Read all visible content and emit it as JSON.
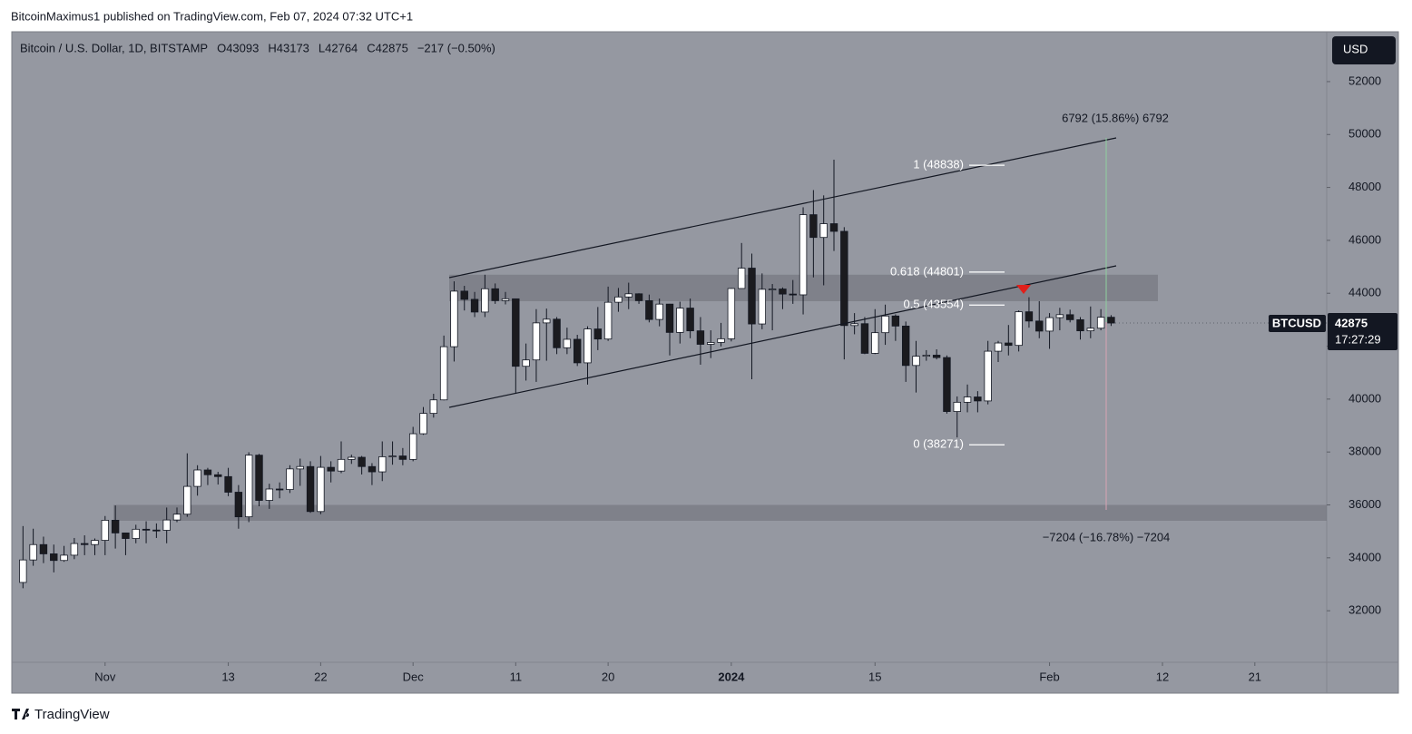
{
  "header": {
    "publisher": "BitcoinMaximus1 published on TradingView.com, Feb 07, 2024 07:32 UTC+1",
    "brand": "TradingView"
  },
  "chart_data": {
    "type": "candlestick",
    "title": "Bitcoin / U.S. Dollar, 1D, BITSTAMP",
    "ohlc_legend": [
      "O43093",
      "H43173",
      "L42764",
      "C42875",
      "−217 (−0.50%)"
    ],
    "currency": "USD",
    "x": [
      "2023-10-24",
      "2023-10-25",
      "2023-10-26",
      "2023-10-27",
      "2023-10-28",
      "2023-10-29",
      "2023-10-30",
      "2023-10-31",
      "2023-11-01",
      "2023-11-02",
      "2023-11-03",
      "2023-11-04",
      "2023-11-05",
      "2023-11-06",
      "2023-11-07",
      "2023-11-08",
      "2023-11-09",
      "2023-11-10",
      "2023-11-11",
      "2023-11-12",
      "2023-11-13",
      "2023-11-14",
      "2023-11-15",
      "2023-11-16",
      "2023-11-17",
      "2023-11-18",
      "2023-11-19",
      "2023-11-20",
      "2023-11-21",
      "2023-11-22",
      "2023-11-23",
      "2023-11-24",
      "2023-11-25",
      "2023-11-26",
      "2023-11-27",
      "2023-11-28",
      "2023-11-29",
      "2023-11-30",
      "2023-12-01",
      "2023-12-02",
      "2023-12-03",
      "2023-12-04",
      "2023-12-05",
      "2023-12-06",
      "2023-12-07",
      "2023-12-08",
      "2023-12-09",
      "2023-12-10",
      "2023-12-11",
      "2023-12-12",
      "2023-12-13",
      "2023-12-14",
      "2023-12-15",
      "2023-12-16",
      "2023-12-17",
      "2023-12-18",
      "2023-12-19",
      "2023-12-20",
      "2023-12-21",
      "2023-12-22",
      "2023-12-23",
      "2023-12-24",
      "2023-12-25",
      "2023-12-26",
      "2023-12-27",
      "2023-12-28",
      "2023-12-29",
      "2023-12-30",
      "2023-12-31",
      "2024-01-01",
      "2024-01-02",
      "2024-01-03",
      "2024-01-04",
      "2024-01-05",
      "2024-01-06",
      "2024-01-07",
      "2024-01-08",
      "2024-01-09",
      "2024-01-10",
      "2024-01-11",
      "2024-01-12",
      "2024-01-13",
      "2024-01-14",
      "2024-01-15",
      "2024-01-16",
      "2024-01-17",
      "2024-01-18",
      "2024-01-19",
      "2024-01-20",
      "2024-01-21",
      "2024-01-22",
      "2024-01-23",
      "2024-01-24",
      "2024-01-25",
      "2024-01-26",
      "2024-01-27",
      "2024-01-28",
      "2024-01-29",
      "2024-01-30",
      "2024-01-31",
      "2024-02-01",
      "2024-02-02",
      "2024-02-03",
      "2024-02-04",
      "2024-02-05",
      "2024-02-06",
      "2024-02-07"
    ],
    "open": [
      33070,
      33920,
      34500,
      34150,
      33900,
      34100,
      34540,
      34500,
      34660,
      35420,
      34940,
      34730,
      35080,
      35050,
      35040,
      35430,
      35650,
      36700,
      37320,
      37140,
      37070,
      36480,
      35550,
      37880,
      36170,
      36600,
      36580,
      37360,
      37450,
      35750,
      37420,
      37280,
      37720,
      37800,
      37450,
      37250,
      37820,
      37850,
      37720,
      38690,
      39460,
      39970,
      41980,
      44080,
      43770,
      43290,
      44170,
      43720,
      43790,
      41240,
      41480,
      42880,
      43020,
      41940,
      42260,
      41370,
      42650,
      42270,
      43660,
      43860,
      43980,
      43720,
      43010,
      43590,
      42520,
      43440,
      42580,
      42070,
      42140,
      42280,
      44180,
      44950,
      42840,
      44150,
      44160,
      43970,
      43940,
      46970,
      46110,
      46630,
      46340,
      42780,
      42850,
      41730,
      42510,
      43140,
      42760,
      41270,
      41620,
      41660,
      41570,
      39530,
      39880,
      40080,
      39930,
      41810,
      42120,
      42030,
      43300,
      42950,
      42570,
      43080,
      43190,
      43000,
      42580,
      42680,
      43093
    ],
    "high": [
      35200,
      35100,
      34800,
      34500,
      34450,
      34750,
      34850,
      34730,
      35580,
      35980,
      34950,
      35250,
      35380,
      35300,
      35900,
      35900,
      37950,
      37500,
      37400,
      37250,
      37400,
      36750,
      37990,
      37930,
      36800,
      36850,
      37500,
      37750,
      37650,
      37850,
      37650,
      38400,
      37900,
      37850,
      37580,
      38400,
      38400,
      38150,
      38950,
      39700,
      40200,
      42400,
      44450,
      44280,
      44050,
      44700,
      44370,
      44050,
      43800,
      42100,
      43400,
      43420,
      43100,
      42700,
      42430,
      42750,
      43480,
      44250,
      44200,
      44400,
      44000,
      43950,
      43800,
      43600,
      43680,
      43800,
      43100,
      42600,
      42880,
      44200,
      45900,
      45500,
      44750,
      44350,
      44220,
      44500,
      47250,
      47900,
      47700,
      49050,
      46500,
      43250,
      43100,
      43400,
      43570,
      43200,
      42930,
      42200,
      41850,
      41880,
      41650,
      40100,
      40550,
      40300,
      42200,
      42200,
      42800,
      43350,
      43850,
      43700,
      43250,
      43450,
      43380,
      43100,
      43500,
      43400,
      43173
    ],
    "low": [
      32850,
      33700,
      33800,
      33450,
      33850,
      33950,
      34100,
      34100,
      34100,
      34350,
      34100,
      34550,
      34550,
      34750,
      34550,
      35350,
      35550,
      36350,
      36750,
      36770,
      36330,
      35100,
      35350,
      35950,
      35850,
      36250,
      36450,
      36720,
      35700,
      35650,
      36850,
      37200,
      37550,
      37150,
      36750,
      36900,
      37520,
      37500,
      37650,
      38650,
      39300,
      39950,
      41420,
      43350,
      43100,
      43100,
      43600,
      43580,
      40200,
      40700,
      40650,
      41450,
      41700,
      41700,
      41250,
      40550,
      41850,
      42200,
      43300,
      43400,
      43600,
      42900,
      42750,
      41650,
      42100,
      42300,
      41300,
      41550,
      41990,
      42180,
      44180,
      40750,
      42640,
      42600,
      43400,
      43600,
      43200,
      44600,
      44300,
      45600,
      41500,
      42450,
      41700,
      41700,
      42050,
      42200,
      40650,
      40250,
      41450,
      41500,
      39450,
      38550,
      39500,
      39500,
      39800,
      41400,
      41650,
      41800,
      42700,
      42300,
      41900,
      42600,
      42900,
      42250,
      42300,
      42600,
      42764
    ],
    "close": [
      33920,
      34500,
      34150,
      33900,
      34100,
      34540,
      34500,
      34660,
      35420,
      34940,
      34730,
      35080,
      35050,
      35040,
      35430,
      35650,
      36700,
      37320,
      37140,
      37070,
      36480,
      35550,
      37880,
      36170,
      36600,
      36580,
      37360,
      37450,
      35750,
      37420,
      37280,
      37720,
      37800,
      37450,
      37250,
      37820,
      37850,
      37720,
      38690,
      39460,
      39970,
      41980,
      44080,
      43770,
      43290,
      44170,
      43720,
      43790,
      41240,
      41480,
      42880,
      43020,
      41940,
      42260,
      41370,
      42650,
      42270,
      43660,
      43860,
      43980,
      43720,
      43010,
      43590,
      42520,
      43440,
      42580,
      42070,
      42140,
      42280,
      44180,
      44950,
      42840,
      44150,
      44160,
      43970,
      43940,
      46970,
      46110,
      46630,
      46340,
      42780,
      42850,
      41730,
      42510,
      43140,
      42760,
      41270,
      41620,
      41660,
      41570,
      39530,
      39880,
      40080,
      39930,
      41810,
      42120,
      42030,
      43300,
      42950,
      42570,
      43080,
      43190,
      43000,
      42580,
      42680,
      43093,
      42875
    ],
    "up_color": "#ffffff",
    "down_color": "#1b1b1f",
    "wick_color": "#131722",
    "xlim": [
      "2023-10-23",
      "2024-02-28"
    ],
    "xticks": [
      {
        "value": "2023-11-01",
        "label": "Nov"
      },
      {
        "value": "2023-11-13",
        "label": "13"
      },
      {
        "value": "2023-11-22",
        "label": "22"
      },
      {
        "value": "2023-12-01",
        "label": "Dec"
      },
      {
        "value": "2023-12-11",
        "label": "11"
      },
      {
        "value": "2023-12-20",
        "label": "20"
      },
      {
        "value": "2024-01-01",
        "label": "2024"
      },
      {
        "value": "2024-01-15",
        "label": "15"
      },
      {
        "value": "2024-02-01",
        "label": "Feb"
      },
      {
        "value": "2024-02-12",
        "label": "12"
      },
      {
        "value": "2024-02-21",
        "label": "21"
      }
    ],
    "ylim": [
      30050,
      53850
    ],
    "yticks": [
      32000,
      34000,
      36000,
      38000,
      40000,
      42000,
      44000,
      46000,
      48000,
      50000,
      52000
    ],
    "resistance_zone": [
      43700,
      44700
    ],
    "support_zone": [
      35400,
      36000
    ],
    "fib_levels": [
      {
        "label": "1 (48838)",
        "value": 48838
      },
      {
        "label": "0.618 (44801)",
        "value": 44801
      },
      {
        "label": "0.5 (43554)",
        "value": 43554
      },
      {
        "label": "0 (38271)",
        "value": 38271
      }
    ],
    "measure_up": "6792 (15.86%) 6792",
    "measure_down": "−7204 (−16.78%) −7204",
    "last_price": {
      "symbol": "BTCUSD",
      "value": 42875,
      "countdown": "17:27:29"
    }
  }
}
